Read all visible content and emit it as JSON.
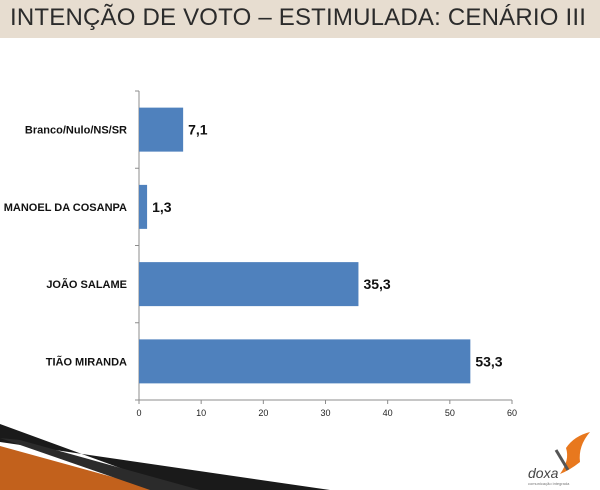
{
  "header": {
    "title": "INTENÇÃO DE VOTO – ESTIMULADA: CENÁRIO III",
    "background": "#e7ddd0"
  },
  "chart_data": {
    "type": "bar",
    "orientation": "horizontal",
    "categories": [
      "Branco/Nulo/NS/SR",
      "MANOEL DA COSANPA",
      "JOÃO SALAME",
      "TIÃO MIRANDA"
    ],
    "values": [
      7.1,
      1.3,
      35.3,
      53.3
    ],
    "value_labels": [
      "7,1",
      "1,3",
      "35,3",
      "53,3"
    ],
    "xlim": [
      0,
      60
    ],
    "x_ticks": [
      0,
      10,
      20,
      30,
      40,
      50,
      60
    ],
    "grid": false,
    "bar_color": "#4f81bd"
  },
  "logo": {
    "text": "doxa",
    "tagline": "comunicação integrada",
    "accent_color": "#e8781e"
  }
}
